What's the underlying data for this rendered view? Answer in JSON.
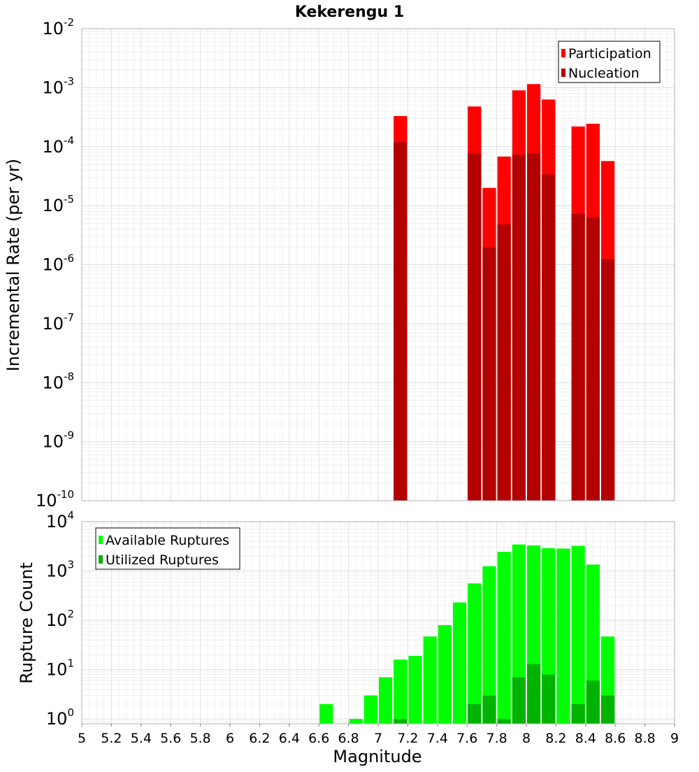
{
  "chart_data": [
    {
      "type": "bar",
      "title": "Kekerengu 1",
      "xlabel": "",
      "ylabel": "Incremental Rate (per yr)",
      "yscale": "log",
      "ylim": [
        1e-10,
        0.01
      ],
      "xlim": [
        5,
        9
      ],
      "ytick_exponents": [
        -10,
        -9,
        -8,
        -7,
        -6,
        -5,
        -4,
        -3,
        -2
      ],
      "legend_position": "top-right",
      "grid": true,
      "bin_width": 0.1,
      "x": [
        7.15,
        7.65,
        7.75,
        7.85,
        7.95,
        8.05,
        8.15,
        8.35,
        8.45,
        8.55
      ],
      "series": [
        {
          "name": "Participation",
          "color": "#ff0000",
          "values": [
            0.00033,
            0.00048,
            2e-05,
            6.8e-05,
            0.0009,
            0.00115,
            0.00063,
            0.00022,
            0.000245,
            5.7e-05
          ]
        },
        {
          "name": "Nucleation",
          "color": "#b30000",
          "values": [
            0.00012,
            7.7e-05,
            1.95e-06,
            4.8e-06,
            7.3e-05,
            7.6e-05,
            3.4e-05,
            7.3e-06,
            6.4e-06,
            1.25e-06
          ]
        }
      ]
    },
    {
      "type": "bar",
      "title": "",
      "xlabel": "Magnitude",
      "ylabel": "Rupture Count",
      "yscale": "log",
      "ylim": [
        0.8,
        10000
      ],
      "xlim": [
        5,
        9
      ],
      "ytick_exponents": [
        0,
        1,
        2,
        3,
        4
      ],
      "x_ticks": [
        "5",
        "5.2",
        "5.4",
        "5.6",
        "5.8",
        "6",
        "6.2",
        "6.4",
        "6.6",
        "6.8",
        "7",
        "7.2",
        "7.4",
        "7.6",
        "7.8",
        "8",
        "8.2",
        "8.4",
        "8.6",
        "8.8",
        "9"
      ],
      "legend_position": "top-left",
      "grid": true,
      "bin_width": 0.1,
      "x": [
        6.65,
        6.85,
        6.95,
        7.05,
        7.15,
        7.25,
        7.35,
        7.45,
        7.55,
        7.65,
        7.75,
        7.85,
        7.95,
        8.05,
        8.15,
        8.25,
        8.35,
        8.45,
        8.55
      ],
      "series": [
        {
          "name": "Available Ruptures",
          "color": "#00ff00",
          "values": [
            2,
            1,
            3,
            7,
            16,
            19,
            47,
            80,
            230,
            560,
            1250,
            2450,
            3450,
            3300,
            2900,
            2850,
            3250,
            1350,
            47
          ]
        },
        {
          "name": "Utilized Ruptures",
          "color": "#00b300",
          "values": [
            0,
            0,
            0,
            0,
            1,
            0,
            0,
            0,
            0,
            2,
            3,
            1,
            7,
            13,
            8,
            0,
            2,
            6,
            3
          ]
        }
      ]
    }
  ]
}
